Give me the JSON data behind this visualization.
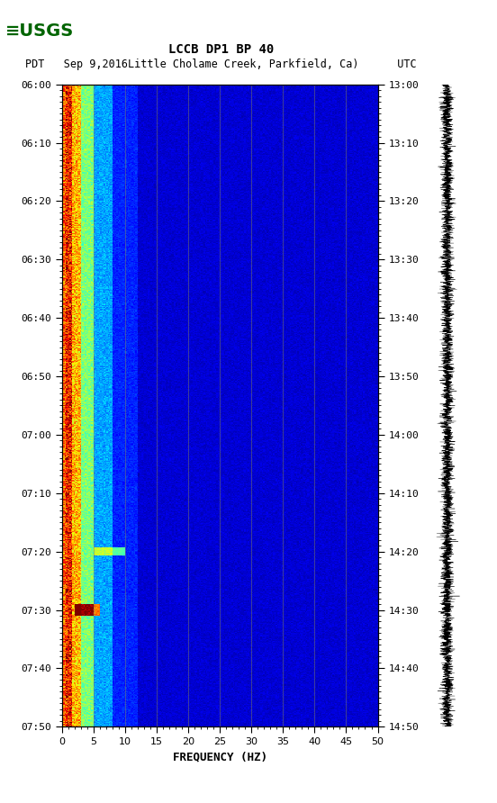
{
  "title_line1": "LCCB DP1 BP 40",
  "title_line2": "PDT   Sep 9,2016Little Cholame Creek, Parkfield, Ca)      UTC",
  "xlabel": "FREQUENCY (HZ)",
  "freq_min": 0,
  "freq_max": 50,
  "time_ticks_left": [
    "06:00",
    "06:10",
    "06:20",
    "06:30",
    "06:40",
    "06:50",
    "07:00",
    "07:10",
    "07:20",
    "07:30",
    "07:40",
    "07:50"
  ],
  "time_ticks_right": [
    "13:00",
    "13:10",
    "13:20",
    "13:30",
    "13:40",
    "13:50",
    "14:00",
    "14:10",
    "14:20",
    "14:30",
    "14:40",
    "14:50"
  ],
  "freq_ticks": [
    0,
    5,
    10,
    15,
    20,
    25,
    30,
    35,
    40,
    45,
    50
  ],
  "grid_freqs": [
    5,
    10,
    15,
    20,
    25,
    30,
    35,
    40,
    45
  ],
  "fig_bg": "#ffffff",
  "font_family": "monospace",
  "axes_bg": "#00008B",
  "n_time": 660,
  "n_freq": 250
}
